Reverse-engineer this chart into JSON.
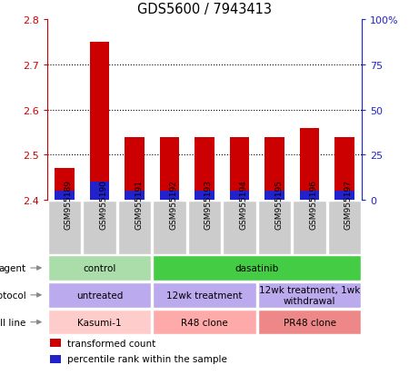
{
  "title": "GDS5600 / 7943413",
  "samples": [
    "GSM955189",
    "GSM955190",
    "GSM955191",
    "GSM955192",
    "GSM955193",
    "GSM955194",
    "GSM955195",
    "GSM955196",
    "GSM955197"
  ],
  "transformed_counts": [
    2.47,
    2.75,
    2.54,
    2.54,
    2.54,
    2.54,
    2.54,
    2.56,
    2.54
  ],
  "percentile_ranks": [
    5,
    10,
    5,
    5,
    5,
    5,
    5,
    5,
    5
  ],
  "bar_base": 2.4,
  "ylim_left": [
    2.4,
    2.8
  ],
  "ylim_right": [
    0,
    100
  ],
  "yticks_left": [
    2.4,
    2.5,
    2.6,
    2.7,
    2.8
  ],
  "yticks_right": [
    0,
    25,
    50,
    75,
    100
  ],
  "bar_color": "#cc0000",
  "pct_color": "#2222cc",
  "agent_labels": [
    {
      "text": "control",
      "start": 0,
      "end": 2,
      "color": "#aaddaa"
    },
    {
      "text": "dasatinib",
      "start": 3,
      "end": 8,
      "color": "#44cc44"
    }
  ],
  "protocol_labels": [
    {
      "text": "untreated",
      "start": 0,
      "end": 2,
      "color": "#bbaaee"
    },
    {
      "text": "12wk treatment",
      "start": 3,
      "end": 5,
      "color": "#bbaaee"
    },
    {
      "text": "12wk treatment, 1wk\nwithdrawal",
      "start": 6,
      "end": 8,
      "color": "#bbaaee"
    }
  ],
  "cellline_labels": [
    {
      "text": "Kasumi-1",
      "start": 0,
      "end": 2,
      "color": "#ffcccc"
    },
    {
      "text": "R48 clone",
      "start": 3,
      "end": 5,
      "color": "#ffaaaa"
    },
    {
      "text": "PR48 clone",
      "start": 6,
      "end": 8,
      "color": "#ee8888"
    }
  ],
  "row_labels": [
    "agent",
    "protocol",
    "cell line"
  ],
  "legend_items": [
    {
      "color": "#cc0000",
      "label": "transformed count"
    },
    {
      "color": "#2222cc",
      "label": "percentile rank within the sample"
    }
  ],
  "tick_color_left": "#cc0000",
  "tick_color_right": "#2222cc",
  "grid_ticks": [
    2.5,
    2.6,
    2.7
  ],
  "sample_label_bg": "#cccccc",
  "sample_label_edge": "#ffffff"
}
